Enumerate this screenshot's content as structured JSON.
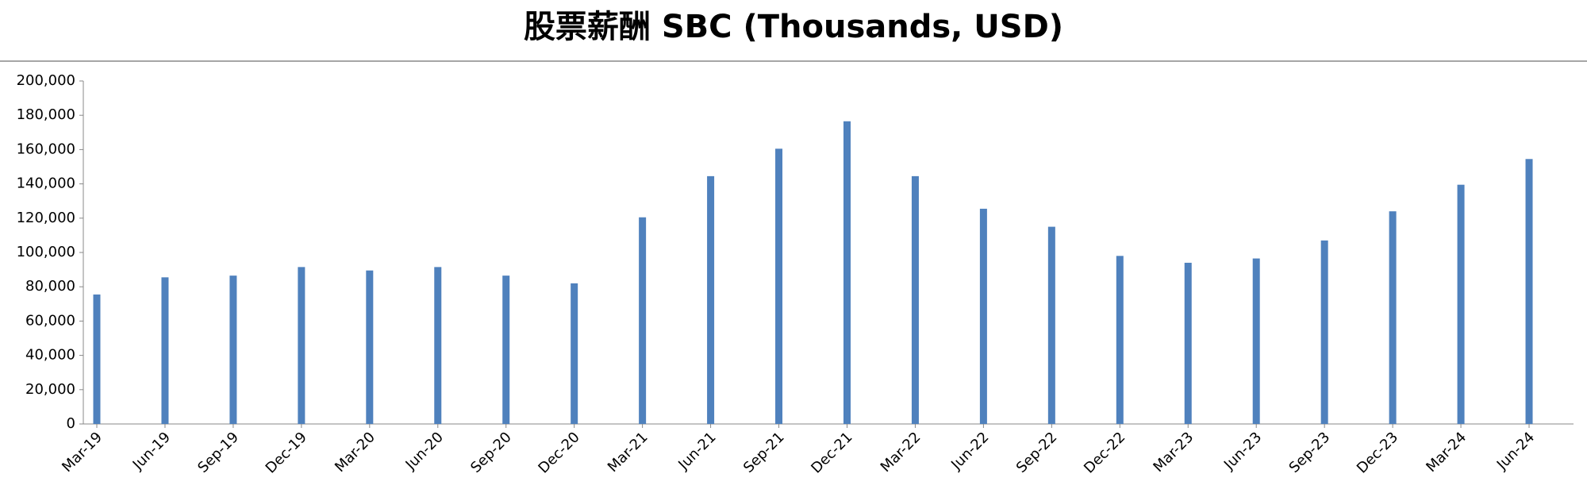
{
  "chart_data": {
    "type": "bar",
    "title": "股票薪酬 SBC (Thousands, USD)",
    "categories": [
      "Mar-19",
      "Jun-19",
      "Sep-19",
      "Dec-19",
      "Mar-20",
      "Jun-20",
      "Sep-20",
      "Dec-20",
      "Mar-21",
      "Jun-21",
      "Sep-21",
      "Dec-21",
      "Mar-22",
      "Jun-22",
      "Sep-22",
      "Dec-22",
      "Mar-23",
      "Jun-23",
      "Sep-23",
      "Dec-23",
      "Mar-24",
      "Jun-24"
    ],
    "values": [
      75500,
      85500,
      86500,
      91500,
      89500,
      91500,
      86500,
      82000,
      120500,
      144500,
      160500,
      176500,
      144500,
      125500,
      115000,
      98000,
      94000,
      96500,
      107000,
      124000,
      139500,
      154500
    ],
    "color": "#4f81bd",
    "ylim": [
      0,
      200000
    ],
    "yticks": [
      0,
      {
        "value": 20000,
        "label": "20,000"
      },
      {
        "value": 40000,
        "label": "40,000"
      },
      {
        "value": 60000,
        "label": "60,000"
      },
      {
        "value": 80000,
        "label": "80,000"
      },
      {
        "value": 100000,
        "label": "100,000"
      },
      {
        "value": 120000,
        "label": "120,000"
      },
      {
        "value": 140000,
        "label": "140,000"
      },
      {
        "value": 160000,
        "label": "160,000"
      },
      {
        "value": 180000,
        "label": "180,000"
      },
      {
        "value": 200000,
        "label": "200,000"
      }
    ],
    "grid": false
  }
}
